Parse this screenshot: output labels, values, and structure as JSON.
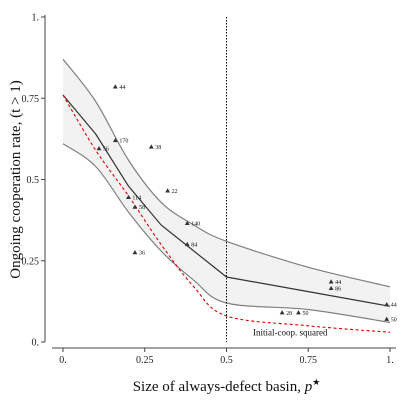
{
  "chart_data": {
    "type": "scatter",
    "xlabel": "Size of always-defect basin, ",
    "xlabel_symbol": "p",
    "xlabel_sup": "★",
    "ylabel": "Ongoing cooperation rate, (t > 1)",
    "xlim": [
      0,
      1
    ],
    "ylim": [
      0,
      1
    ],
    "x_ticks": [
      {
        "value": 0,
        "label": "0."
      },
      {
        "value": 0.25,
        "label": "0.25"
      },
      {
        "value": 0.5,
        "label": "0.5"
      },
      {
        "value": 0.75,
        "label": "0.75"
      },
      {
        "value": 1,
        "label": "1."
      }
    ],
    "y_ticks": [
      {
        "value": 0,
        "label": "0."
      },
      {
        "value": 0.25,
        "label": "0.25"
      },
      {
        "value": 0.5,
        "label": "0.5"
      },
      {
        "value": 0.75,
        "label": "0.75"
      },
      {
        "value": 1,
        "label": "1."
      }
    ],
    "points": [
      {
        "x": 0.16,
        "y": 0.785,
        "label": "44"
      },
      {
        "x": 0.16,
        "y": 0.62,
        "label": "170"
      },
      {
        "x": 0.11,
        "y": 0.595,
        "label": "56"
      },
      {
        "x": 0.27,
        "y": 0.6,
        "label": "38"
      },
      {
        "x": 0.32,
        "y": 0.465,
        "label": "22"
      },
      {
        "x": 0.2,
        "y": 0.445,
        "label": "114"
      },
      {
        "x": 0.22,
        "y": 0.415,
        "label": "58"
      },
      {
        "x": 0.38,
        "y": 0.365,
        "label": "140"
      },
      {
        "x": 0.38,
        "y": 0.3,
        "label": "84"
      },
      {
        "x": 0.22,
        "y": 0.275,
        "label": "36"
      },
      {
        "x": 0.82,
        "y": 0.185,
        "label": "44"
      },
      {
        "x": 0.82,
        "y": 0.165,
        "label": "86"
      },
      {
        "x": 0.67,
        "y": 0.09,
        "label": "28"
      },
      {
        "x": 0.72,
        "y": 0.09,
        "label": "50"
      },
      {
        "x": 0.99,
        "y": 0.115,
        "label": "44"
      },
      {
        "x": 0.99,
        "y": 0.07,
        "label": "50"
      }
    ],
    "fit_line": [
      {
        "x": 0,
        "y": 0.76
      },
      {
        "x": 0.1,
        "y": 0.64
      },
      {
        "x": 0.2,
        "y": 0.48
      },
      {
        "x": 0.3,
        "y": 0.36
      },
      {
        "x": 0.4,
        "y": 0.28
      },
      {
        "x": 0.5,
        "y": 0.2
      },
      {
        "x": 0.75,
        "y": 0.155
      },
      {
        "x": 1,
        "y": 0.11
      }
    ],
    "band_upper": [
      {
        "x": 0,
        "y": 0.87
      },
      {
        "x": 0.1,
        "y": 0.74
      },
      {
        "x": 0.2,
        "y": 0.56
      },
      {
        "x": 0.3,
        "y": 0.43
      },
      {
        "x": 0.4,
        "y": 0.36
      },
      {
        "x": 0.5,
        "y": 0.31
      },
      {
        "x": 0.75,
        "y": 0.23
      },
      {
        "x": 1,
        "y": 0.17
      }
    ],
    "band_lower": [
      {
        "x": 0,
        "y": 0.61
      },
      {
        "x": 0.1,
        "y": 0.54
      },
      {
        "x": 0.2,
        "y": 0.4
      },
      {
        "x": 0.3,
        "y": 0.28
      },
      {
        "x": 0.4,
        "y": 0.19
      },
      {
        "x": 0.5,
        "y": 0.12
      },
      {
        "x": 0.75,
        "y": 0.1
      },
      {
        "x": 1,
        "y": 0.06
      }
    ],
    "reference_curve": [
      {
        "x": 0,
        "y": 0.76
      },
      {
        "x": 0.1,
        "y": 0.59
      },
      {
        "x": 0.2,
        "y": 0.45
      },
      {
        "x": 0.3,
        "y": 0.3
      },
      {
        "x": 0.4,
        "y": 0.17
      },
      {
        "x": 0.5,
        "y": 0.08
      },
      {
        "x": 0.75,
        "y": 0.05
      },
      {
        "x": 1,
        "y": 0.03
      }
    ],
    "vertical_line_x": 0.5,
    "annotation": {
      "text": "Initial-coop. squared",
      "x": 0.695,
      "y": 0.02
    },
    "colors": {
      "band_fill": "#f2f2f2",
      "band_stroke": "#808080",
      "fit_line": "#333333",
      "reference_curve": "#e00000",
      "points": "#333333",
      "axis": "#444444"
    }
  }
}
